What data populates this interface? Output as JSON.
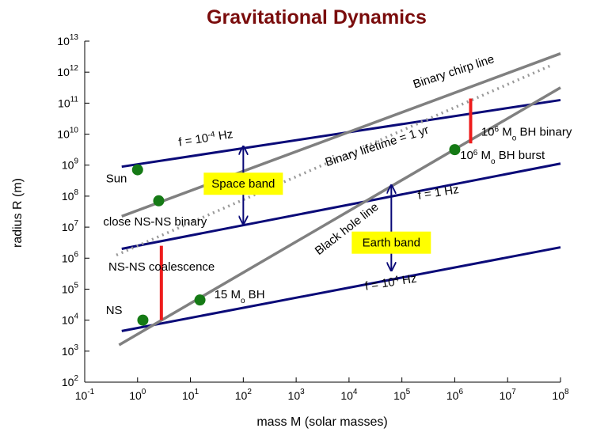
{
  "chart_data": {
    "type": "line",
    "title": "Gravitational Dynamics",
    "xlabel": "mass M (solar masses)",
    "ylabel": "radius R (m)",
    "xscale": "log",
    "yscale": "log",
    "xlim_exp": [
      -1,
      8
    ],
    "ylim_exp": [
      2,
      13
    ],
    "x_ticks": [
      {
        "base": "10",
        "exp": "-1"
      },
      {
        "base": "10",
        "exp": "0"
      },
      {
        "base": "10",
        "exp": "1"
      },
      {
        "base": "10",
        "exp": "2"
      },
      {
        "base": "10",
        "exp": "3"
      },
      {
        "base": "10",
        "exp": "4"
      },
      {
        "base": "10",
        "exp": "5"
      },
      {
        "base": "10",
        "exp": "6"
      },
      {
        "base": "10",
        "exp": "7"
      },
      {
        "base": "10",
        "exp": "8"
      }
    ],
    "y_ticks": [
      {
        "base": "10",
        "exp": "2"
      },
      {
        "base": "10",
        "exp": "3"
      },
      {
        "base": "10",
        "exp": "4"
      },
      {
        "base": "10",
        "exp": "5"
      },
      {
        "base": "10",
        "exp": "6"
      },
      {
        "base": "10",
        "exp": "7"
      },
      {
        "base": "10",
        "exp": "8"
      },
      {
        "base": "10",
        "exp": "9"
      },
      {
        "base": "10",
        "exp": "10"
      },
      {
        "base": "10",
        "exp": "11"
      },
      {
        "base": "10",
        "exp": "12"
      },
      {
        "base": "10",
        "exp": "13"
      }
    ],
    "grid": false,
    "lines": [
      {
        "id": "freq-1e-4",
        "color": "#0a0a78",
        "width": 3,
        "points": [
          {
            "logM": -0.3,
            "logR": 8.95
          },
          {
            "logM": 8.0,
            "logR": 11.1
          }
        ]
      },
      {
        "id": "freq-1",
        "color": "#0a0a78",
        "width": 3,
        "points": [
          {
            "logM": -0.3,
            "logR": 6.3
          },
          {
            "logM": 8.0,
            "logR": 9.05
          }
        ]
      },
      {
        "id": "freq-1e4",
        "color": "#0a0a78",
        "width": 3,
        "points": [
          {
            "logM": -0.3,
            "logR": 3.65
          },
          {
            "logM": 8.0,
            "logR": 6.35
          }
        ]
      },
      {
        "id": "binary-chirp-line",
        "color": "#808080",
        "width": 3.5,
        "points": [
          {
            "logM": -0.3,
            "logR": 7.35
          },
          {
            "logM": 8.0,
            "logR": 12.6
          }
        ]
      },
      {
        "id": "black-hole-line",
        "color": "#808080",
        "width": 3.5,
        "points": [
          {
            "logM": -0.35,
            "logR": 3.2
          },
          {
            "logM": 8.0,
            "logR": 11.5
          }
        ]
      },
      {
        "id": "binary-lifetime-1yr",
        "color": "#999999",
        "width": 3.5,
        "dash": "2 5",
        "points": [
          {
            "logM": -0.4,
            "logR": 6.1
          },
          {
            "logM": 7.8,
            "logR": 12.2
          }
        ]
      }
    ],
    "band_arrows": [
      {
        "id": "space-band-arrow",
        "logM": 2.0,
        "logR_top": 9.6,
        "logR_bottom": 7.1
      },
      {
        "id": "earth-band-arrow",
        "logM": 4.8,
        "logR_top": 8.35,
        "logR_bottom": 5.6
      }
    ],
    "red_segments": [
      {
        "id": "ns-ns-coalescence-segment",
        "logM": 0.45,
        "logR_top": 6.4,
        "logR_bottom": 4.0
      },
      {
        "id": "bh-binary-segment",
        "logM": 6.3,
        "logR_top": 11.15,
        "logR_bottom": 9.7
      }
    ],
    "points": [
      {
        "id": "sun",
        "logM": 0.0,
        "logR": 8.85
      },
      {
        "id": "close-ns-ns-binary",
        "logM": 0.4,
        "logR": 7.85
      },
      {
        "id": "ns",
        "logM": 0.1,
        "logR": 4.0
      },
      {
        "id": "15-msun-bh",
        "logM": 1.18,
        "logR": 4.65
      },
      {
        "id": "bh-burst",
        "logM": 6.0,
        "logR": 9.5
      }
    ],
    "point_color": "#157a15",
    "bands": [
      {
        "id": "space-band",
        "label": "Space band",
        "logM": 2.0,
        "logR": 8.4
      },
      {
        "id": "earth-band",
        "label": "Earth band",
        "logM": 4.8,
        "logR": 6.5
      }
    ],
    "band_color": "#ffff00",
    "annotations": [
      {
        "id": "label-f-1e-4",
        "segments": [
          {
            "t": "f = 10"
          },
          {
            "t": "-4",
            "sup": true
          },
          {
            "t": " Hz"
          }
        ],
        "logM": 1.3,
        "logR": 9.75,
        "anchor": "middle",
        "rotate": -9
      },
      {
        "id": "label-f-1",
        "segments": [
          {
            "t": "f = 1 Hz"
          }
        ],
        "logM": 5.7,
        "logR": 8.0,
        "anchor": "middle",
        "rotate": -9
      },
      {
        "id": "label-f-1e4",
        "segments": [
          {
            "t": "f = 10"
          },
          {
            "t": "4",
            "sup": true
          },
          {
            "t": " Hz"
          }
        ],
        "logM": 4.8,
        "logR": 5.1,
        "anchor": "middle",
        "rotate": -9
      },
      {
        "id": "label-binary-chirp-line",
        "text": "Binary chirp line",
        "logM": 6.0,
        "logR": 11.9,
        "anchor": "middle",
        "rotate": -18
      },
      {
        "id": "label-binary-lifetime",
        "text": "Binary lifetime = 1 yr",
        "logM": 4.55,
        "logR": 9.5,
        "anchor": "middle",
        "rotate": -18
      },
      {
        "id": "label-black-hole-line",
        "text": "Black hole line",
        "logM": 4.0,
        "logR": 6.85,
        "anchor": "middle",
        "rotate": -38
      },
      {
        "id": "label-sun",
        "text": "Sun",
        "logM": -0.6,
        "logR": 8.45,
        "anchor": "start",
        "rotate": 0
      },
      {
        "id": "label-close-ns-ns-binary",
        "text": "close NS-NS binary",
        "logM": -0.65,
        "logR": 7.05,
        "anchor": "start",
        "rotate": 0
      },
      {
        "id": "label-ns-ns-coalescence",
        "text": "NS-NS coalescence",
        "logM": -0.55,
        "logR": 5.6,
        "anchor": "start",
        "rotate": 0
      },
      {
        "id": "label-ns",
        "text": "NS",
        "logM": -0.6,
        "logR": 4.2,
        "anchor": "start",
        "rotate": 0
      },
      {
        "id": "label-15-msun-bh",
        "segments": [
          {
            "t": "15 M"
          },
          {
            "t": "o",
            "sub": true
          },
          {
            "t": " BH"
          }
        ],
        "logM": 1.45,
        "logR": 4.7,
        "anchor": "start",
        "rotate": 0
      },
      {
        "id": "label-bh-binary",
        "segments": [
          {
            "t": "10"
          },
          {
            "t": "6",
            "sup": true
          },
          {
            "t": " M"
          },
          {
            "t": "o",
            "sub": true
          },
          {
            "t": " BH binary"
          }
        ],
        "logM": 6.5,
        "logR": 9.95,
        "anchor": "start",
        "rotate": 0
      },
      {
        "id": "label-bh-burst",
        "segments": [
          {
            "t": "10"
          },
          {
            "t": "6",
            "sup": true
          },
          {
            "t": " M"
          },
          {
            "t": "o",
            "sub": true
          },
          {
            "t": " BH burst"
          }
        ],
        "logM": 6.1,
        "logR": 9.2,
        "anchor": "start",
        "rotate": 0
      }
    ]
  }
}
